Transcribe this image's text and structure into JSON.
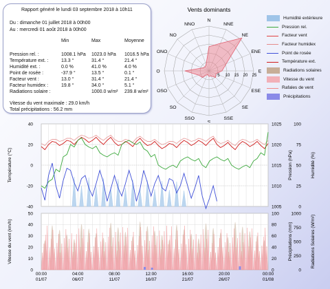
{
  "report": {
    "title": "Rapport généré le lundi 03 septembre 2018 à 10h11",
    "period_from": "Du : dimanche 01 juillet 2018 à 00h00",
    "period_to": "Au : mercredi 01 août 2018 à 00h00",
    "headers": [
      "Min",
      "Max",
      "Moyenne"
    ],
    "rows": [
      {
        "label": "Pression rel. :",
        "min": "1008.1 hPa",
        "max": "1023.0 hPa",
        "avg": "1016.5 hPa"
      },
      {
        "label": "Température ext. :",
        "min": "13.3 °",
        "max": "31.4 °",
        "avg": "21.4 °"
      },
      {
        "label": "Humidité ext. :",
        "min": "0.0 %",
        "max": "41.0 %",
        "avg": "4.0 %"
      },
      {
        "label": "Point de rosée :",
        "min": "-37.9 °",
        "max": "13.5 °",
        "avg": "0.1 °"
      },
      {
        "label": "Facteur vent :",
        "min": "13.0 °",
        "max": "31.4 °",
        "avg": "21.4 °"
      },
      {
        "label": "Facteur humidex :",
        "min": "19.8 °",
        "max": "34.0 °",
        "avg": "5.1 °"
      },
      {
        "label": "Radiations solaire :",
        "min": "",
        "max": "1000.0 w/m²",
        "avg": "239.8 w/m²"
      }
    ],
    "max_wind": "Vitesse du vent maximale : 29.0 km/h",
    "total_precip": "Total précipitations : 56.2 mm"
  },
  "legend": [
    {
      "label": "Humidité extérieure",
      "color": "#9fc4e8",
      "style": "fill"
    },
    {
      "label": "Pression rel.",
      "color": "#3aa83a",
      "style": "line"
    },
    {
      "label": "Facteur vent",
      "color": "#e04040",
      "style": "line"
    },
    {
      "label": "Facteur humidex",
      "color": "#e48a8a",
      "style": "line"
    },
    {
      "label": "Point de rosée",
      "color": "#3e4fd8",
      "style": "line"
    },
    {
      "label": "Température ext.",
      "color": "#d01818",
      "style": "line"
    },
    {
      "label": "Radiations solaires",
      "color": "#c7ae98",
      "style": "fill"
    },
    {
      "label": "Vitesse du vent",
      "color": "#f2b0b8",
      "style": "fill"
    },
    {
      "label": "Rafales de vent",
      "color": "#f08888",
      "style": "line"
    },
    {
      "label": "Précipitations",
      "color": "#8a8ae8",
      "style": "fill"
    }
  ],
  "chart_data": [
    {
      "type": "radar",
      "title": "Vents dominants",
      "directions": [
        "N",
        "NNE",
        "NE",
        "ENE",
        "E",
        "ESE",
        "SE",
        "SSE",
        "S",
        "SSO",
        "SO",
        "OSO",
        "O",
        "ONO",
        "NO",
        "NNO"
      ],
      "values": [
        26,
        32,
        50,
        20,
        14,
        8,
        10,
        6,
        6,
        4,
        10,
        12,
        26,
        8,
        6,
        8
      ],
      "ticks": [
        5,
        10,
        15,
        20,
        25
      ],
      "rmax": 50
    },
    {
      "type": "line",
      "ylabel_left": "Température (°C)",
      "ylabel_right": "Pression (hPa)",
      "ylabel_right2": "Humidité (%)",
      "left_ticks": [
        -40,
        -20,
        0,
        20,
        40
      ],
      "pressure_ticks": [
        1005,
        1010,
        1015,
        1020,
        1025
      ],
      "humidity_ticks": [
        0,
        25,
        50,
        75,
        100
      ],
      "ylim_left": [
        -40,
        40
      ],
      "ylim_pressure": [
        1005,
        1025
      ],
      "series": [
        {
          "name": "Température ext.",
          "x": [
            0,
            1,
            2,
            3,
            4,
            5,
            6,
            7,
            8,
            9,
            10,
            11,
            12,
            13,
            14,
            15,
            16,
            17,
            18,
            19,
            20,
            21,
            22,
            23,
            24,
            25,
            26,
            27,
            28,
            29,
            30,
            31
          ],
          "values": [
            18,
            20,
            22,
            21,
            23,
            24,
            25,
            24,
            23,
            24,
            22,
            20,
            21,
            23,
            22,
            20,
            19,
            18,
            20,
            21,
            22,
            21,
            22,
            23,
            20,
            19,
            18,
            20,
            21,
            20,
            19,
            21
          ]
        },
        {
          "name": "Pression rel.",
          "x": [
            0,
            1,
            2,
            3,
            4,
            5,
            6,
            7,
            8,
            9,
            10,
            11,
            12,
            13,
            14,
            15,
            16,
            17,
            18,
            19,
            20,
            21,
            22,
            23,
            24,
            25,
            26,
            27,
            28,
            29,
            30,
            31
          ],
          "values": [
            1010,
            1011,
            1014,
            1017,
            1020,
            1021,
            1020,
            1019,
            1018,
            1017,
            1018,
            1020,
            1021,
            1020,
            1019,
            1017,
            1015,
            1014,
            1015,
            1016,
            1017,
            1016,
            1015,
            1016,
            1017,
            1016,
            1015,
            1014,
            1015,
            1016,
            1018,
            1023
          ]
        },
        {
          "name": "Point de rosée",
          "x": [
            0,
            1,
            2,
            3,
            4,
            5,
            6,
            7,
            8,
            9,
            10,
            11,
            12,
            13,
            14,
            15,
            16,
            17,
            18,
            19,
            20,
            21,
            22,
            23,
            24,
            25,
            26,
            27,
            28,
            29,
            30,
            31
          ],
          "values": [
            -22,
            -10,
            -20,
            -15,
            -5,
            -25,
            -10,
            -30,
            -5,
            -35,
            -10,
            -30,
            -5,
            -35,
            -5,
            -30,
            -10,
            -25,
            -15,
            -20,
            -20,
            -22,
            -30,
            -32,
            -35,
            null,
            null,
            null,
            null,
            null,
            null,
            null
          ]
        }
      ]
    },
    {
      "type": "area",
      "ylabel_left": "Vitesse du vent (km/h)",
      "ylabel_right": "Précipitations (mm)",
      "ylabel_right2": "Radiations Solaires (W/m²)",
      "left_ticks": [
        0,
        10,
        20,
        30,
        40,
        50
      ],
      "precip_ticks": [
        0,
        20,
        40,
        60,
        80,
        100
      ],
      "radiation_ticks": [
        0,
        250,
        500,
        750,
        1000
      ],
      "ylim_left": [
        0,
        50
      ],
      "x_tick_labels": [
        "01/07",
        "06/07",
        "11/07",
        "16/07",
        "21/07",
        "26/07",
        "01/08"
      ],
      "x_tick_labels_top": [
        "00:00",
        "04:00",
        "08:00",
        "12:00",
        "16:00",
        "20:00",
        "00:00"
      ]
    }
  ]
}
